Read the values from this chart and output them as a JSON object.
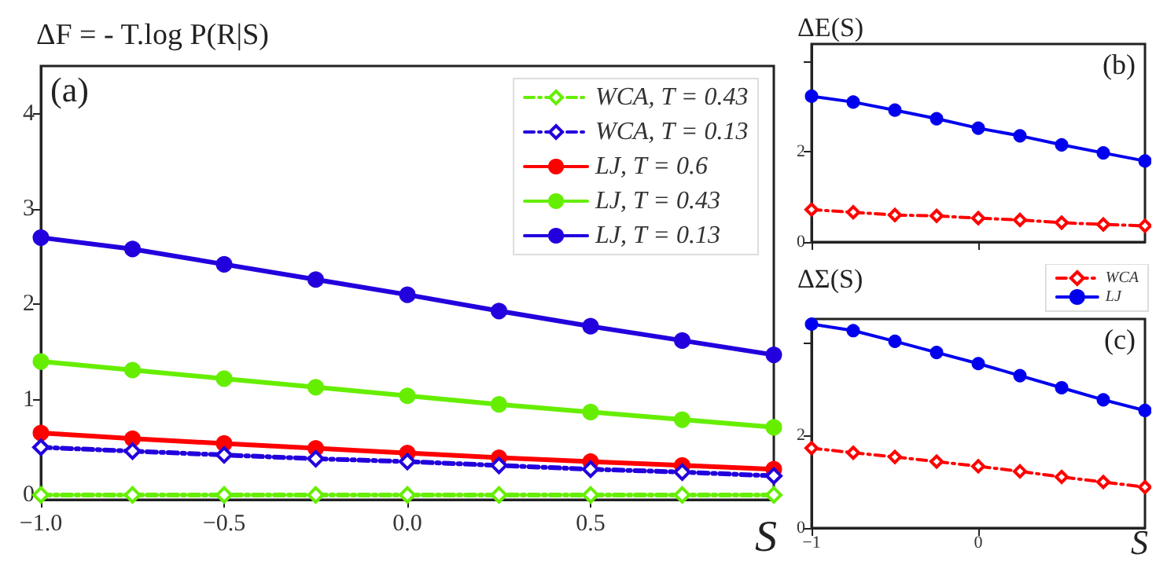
{
  "chart_data": [
    {
      "type": "line",
      "title": "ΔF = - T.log P(R|S)",
      "xlabel": "S",
      "annotations": [
        "(a)"
      ],
      "x": [
        -1,
        -0.75,
        -0.5,
        -0.25,
        0,
        0.25,
        0.5,
        0.75,
        1
      ],
      "xlim": [
        -1,
        1
      ],
      "xticks": [
        {
          "value": -1,
          "label": "−1.0"
        },
        {
          "value": -0.5,
          "label": "−0.5"
        },
        {
          "value": 0,
          "label": "0.0"
        },
        0.5
      ],
      "ylim": [
        -0.05,
        4.5
      ],
      "yticks": [
        0,
        1,
        2,
        3,
        4
      ],
      "grid": false,
      "legend": "top right",
      "series": [
        {
          "name": "WCA, T = 0.43",
          "color": "#66ee00",
          "marker": "diamond",
          "line_style": "dashed",
          "values": [
            0,
            0,
            0,
            0,
            0,
            0,
            0,
            0,
            0
          ]
        },
        {
          "name": "WCA, T = 0.13",
          "color": "#2200dd",
          "marker": "diamond",
          "line_style": "dashed",
          "values": [
            0.5,
            0.46,
            0.42,
            0.38,
            0.35,
            0.31,
            0.27,
            0.24,
            0.2
          ]
        },
        {
          "name": "LJ, T = 0.6",
          "color": "#ff0000",
          "marker": "circle",
          "line_style": "solid",
          "values": [
            0.65,
            0.59,
            0.54,
            0.49,
            0.44,
            0.39,
            0.35,
            0.31,
            0.27
          ]
        },
        {
          "name": "LJ, T = 0.43",
          "color": "#66ee00",
          "marker": "circle",
          "line_style": "solid",
          "values": [
            1.4,
            1.31,
            1.22,
            1.13,
            1.04,
            0.95,
            0.87,
            0.79,
            0.71
          ]
        },
        {
          "name": "LJ, T = 0.13",
          "color": "#2200dd",
          "marker": "circle",
          "line_style": "solid",
          "values": [
            2.7,
            2.58,
            2.42,
            2.26,
            2.1,
            1.93,
            1.77,
            1.62,
            1.47
          ]
        }
      ]
    },
    {
      "type": "line",
      "title": "ΔE(S)",
      "annotations": [
        "(b)"
      ],
      "x": [
        -1,
        -0.75,
        -0.5,
        -0.25,
        0,
        0.25,
        0.5,
        0.75,
        1
      ],
      "xlim": [
        -1,
        1
      ],
      "xticks": [
        -1,
        0
      ],
      "ylim": [
        0,
        4.4
      ],
      "yticks": [
        0,
        2,
        {
          "value": 4,
          "label": null
        }
      ],
      "tick_labels": "y",
      "grid": false,
      "series": [
        {
          "color": "#ff0000",
          "marker": "diamond",
          "line_style": "dashed",
          "values": [
            0.72,
            0.66,
            0.6,
            0.58,
            0.53,
            0.49,
            0.43,
            0.39,
            0.36
          ]
        },
        {
          "color": "#0000ee",
          "marker": "circle",
          "line_style": "solid",
          "values": [
            3.24,
            3.11,
            2.93,
            2.74,
            2.53,
            2.36,
            2.16,
            1.98,
            1.8
          ]
        }
      ]
    },
    {
      "type": "line",
      "title": "ΔΣ(S)",
      "xlabel": "S",
      "annotations": [
        "(c)"
      ],
      "x": [
        -1,
        -0.75,
        -0.5,
        -0.25,
        0,
        0.25,
        0.5,
        0.75,
        1
      ],
      "xlim": [
        -1,
        1
      ],
      "xticks": [
        {
          "value": -1,
          "label": "−1"
        },
        0
      ],
      "ylim": [
        0,
        4.5
      ],
      "yticks": [
        0,
        2,
        {
          "value": 4,
          "label": null
        }
      ],
      "grid": false,
      "legend": "top right",
      "series": [
        {
          "name": "WCA",
          "color": "#ff0000",
          "marker": "diamond",
          "line_style": "dashed",
          "values": [
            1.72,
            1.62,
            1.53,
            1.43,
            1.33,
            1.22,
            1.1,
            0.99,
            0.88
          ]
        },
        {
          "name": "LJ",
          "color": "#0000ee",
          "marker": "circle",
          "line_style": "solid",
          "values": [
            4.39,
            4.25,
            4.02,
            3.78,
            3.54,
            3.28,
            3.02,
            2.76,
            2.53
          ]
        }
      ]
    }
  ]
}
